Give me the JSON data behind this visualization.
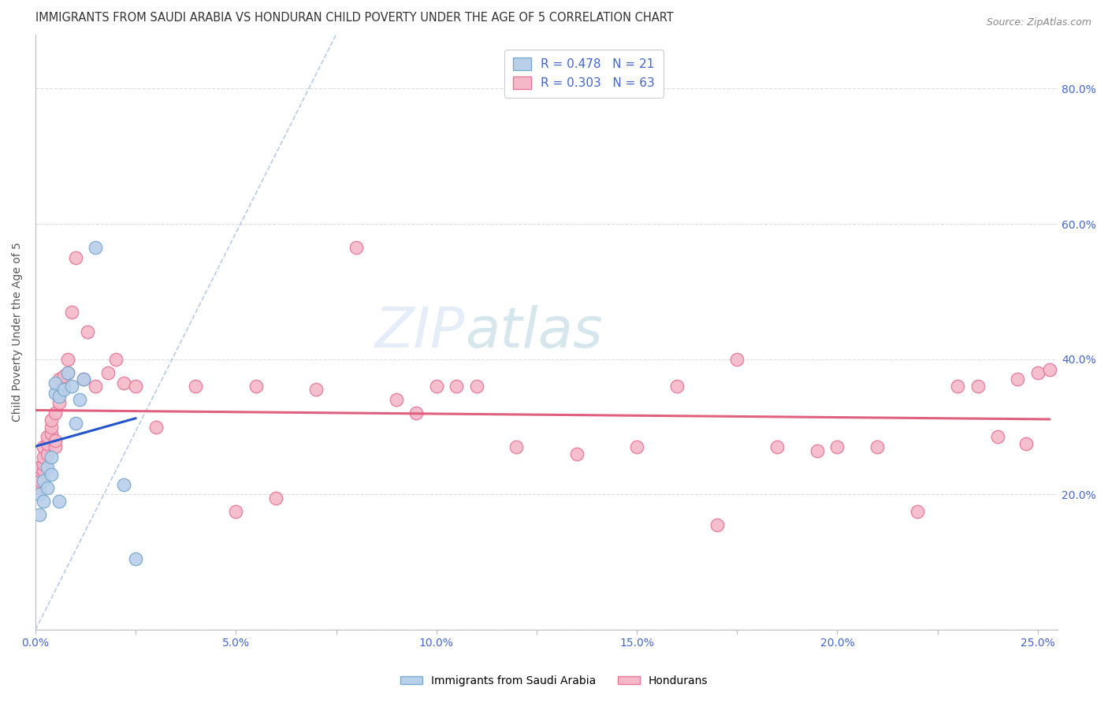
{
  "title": "IMMIGRANTS FROM SAUDI ARABIA VS HONDURAN CHILD POVERTY UNDER THE AGE OF 5 CORRELATION CHART",
  "source": "Source: ZipAtlas.com",
  "ylabel": "Child Poverty Under the Age of 5",
  "xlim": [
    0.0,
    0.255
  ],
  "ylim": [
    -0.02,
    0.92
  ],
  "plot_ylim": [
    0.0,
    0.88
  ],
  "ytick_values": [
    0.0,
    0.2,
    0.4,
    0.6,
    0.8
  ],
  "ytick_right_labels": [
    "20.0%",
    "40.0%",
    "60.0%",
    "80.0%"
  ],
  "ytick_right_values": [
    0.2,
    0.4,
    0.6,
    0.8
  ],
  "xtick_labels": [
    "0.0%",
    "",
    "5.0%",
    "",
    "10.0%",
    "",
    "15.0%",
    "",
    "20.0%",
    "",
    "25.0%"
  ],
  "xtick_values": [
    0.0,
    0.025,
    0.05,
    0.075,
    0.1,
    0.125,
    0.15,
    0.175,
    0.2,
    0.225,
    0.25
  ],
  "legend_entries": [
    {
      "label": "R = 0.478   N = 21",
      "color": "#b8d0ea"
    },
    {
      "label": "R = 0.303   N = 63",
      "color": "#f5b8c8"
    }
  ],
  "legend_label_saudi": "Immigrants from Saudi Arabia",
  "legend_label_honduran": "Hondurans",
  "saudi_color": "#b8d0ea",
  "honduran_color": "#f5b8c8",
  "saudi_edge_color": "#7aaad0",
  "honduran_edge_color": "#e87898",
  "trend_saudi_color": "#2255cc",
  "trend_honduran_color": "#e06080",
  "diag_color": "#9ab8e0",
  "background_color": "#ffffff",
  "grid_color": "#dddddd",
  "axis_label_color": "#4466cc",
  "title_color": "#333333",
  "title_fontsize": 10.5,
  "axis_fontsize": 10,
  "source_fontsize": 9,
  "saudi_x": [
    0.001,
    0.001,
    0.002,
    0.002,
    0.003,
    0.003,
    0.004,
    0.004,
    0.005,
    0.005,
    0.006,
    0.006,
    0.007,
    0.008,
    0.009,
    0.01,
    0.011,
    0.012,
    0.015,
    0.022,
    0.025
  ],
  "saudi_y": [
    0.17,
    0.2,
    0.19,
    0.22,
    0.21,
    0.24,
    0.23,
    0.255,
    0.35,
    0.365,
    0.345,
    0.19,
    0.355,
    0.38,
    0.36,
    0.305,
    0.34,
    0.37,
    0.565,
    0.215,
    0.105
  ],
  "honduran_x": [
    0.001,
    0.001,
    0.001,
    0.001,
    0.002,
    0.002,
    0.002,
    0.002,
    0.003,
    0.003,
    0.003,
    0.004,
    0.004,
    0.004,
    0.005,
    0.005,
    0.005,
    0.006,
    0.006,
    0.006,
    0.007,
    0.007,
    0.008,
    0.008,
    0.009,
    0.01,
    0.012,
    0.013,
    0.015,
    0.018,
    0.02,
    0.022,
    0.025,
    0.03,
    0.04,
    0.05,
    0.055,
    0.06,
    0.07,
    0.08,
    0.09,
    0.095,
    0.1,
    0.105,
    0.11,
    0.12,
    0.135,
    0.15,
    0.16,
    0.17,
    0.175,
    0.185,
    0.195,
    0.2,
    0.21,
    0.22,
    0.23,
    0.235,
    0.24,
    0.245,
    0.247,
    0.25,
    0.253
  ],
  "honduran_y": [
    0.21,
    0.22,
    0.235,
    0.24,
    0.235,
    0.245,
    0.255,
    0.27,
    0.26,
    0.275,
    0.285,
    0.29,
    0.3,
    0.31,
    0.27,
    0.28,
    0.32,
    0.335,
    0.35,
    0.37,
    0.36,
    0.375,
    0.38,
    0.4,
    0.47,
    0.55,
    0.37,
    0.44,
    0.36,
    0.38,
    0.4,
    0.365,
    0.36,
    0.3,
    0.36,
    0.175,
    0.36,
    0.195,
    0.355,
    0.565,
    0.34,
    0.32,
    0.36,
    0.36,
    0.36,
    0.27,
    0.26,
    0.27,
    0.36,
    0.155,
    0.4,
    0.27,
    0.265,
    0.27,
    0.27,
    0.175,
    0.36,
    0.36,
    0.285,
    0.37,
    0.275,
    0.38,
    0.385
  ]
}
